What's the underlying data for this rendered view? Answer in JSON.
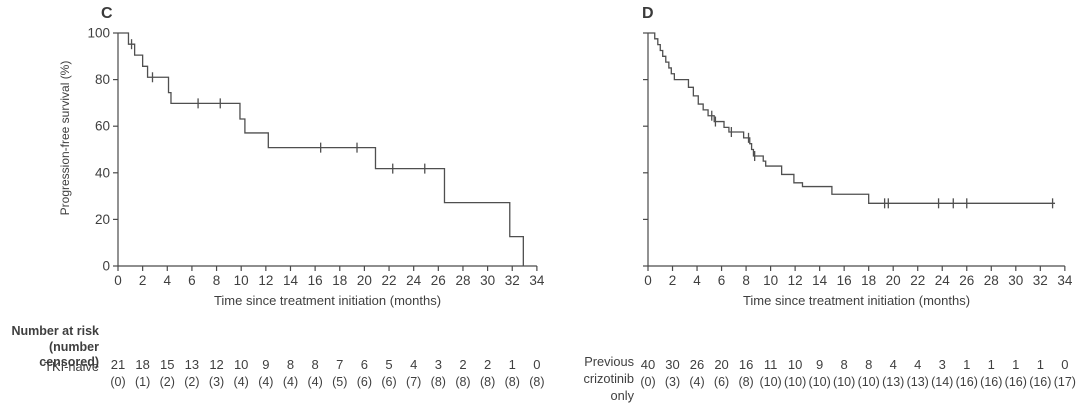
{
  "risk_header": {
    "line1": "Number at risk",
    "line2": "(number censored)"
  },
  "colors": {
    "curve": "#4f4f4f",
    "axis": "#4a4a4a",
    "text": "#3f3f3f"
  },
  "chart_data": [
    {
      "type": "line",
      "subtype": "kaplan-meier-step",
      "km_panel": "C",
      "title": "",
      "xlabel": "Time since treatment initiation (months)",
      "ylabel": "Progression-free survival (%)",
      "xlim": [
        0,
        34
      ],
      "ylim": [
        0,
        100
      ],
      "x_ticks": [
        0,
        2,
        4,
        6,
        8,
        10,
        12,
        14,
        16,
        18,
        20,
        22,
        24,
        26,
        28,
        30,
        32,
        34
      ],
      "y_ticks": [
        0,
        20,
        40,
        60,
        80,
        100
      ],
      "show_y_tick_labels": true,
      "series": [
        {
          "name": "TKI-naive",
          "steps": [
            [
              0,
              100
            ],
            [
              0.85,
              95.2
            ],
            [
              1.35,
              90.5
            ],
            [
              2.0,
              85.7
            ],
            [
              2.4,
              81
            ],
            [
              4.1,
              74.4
            ],
            [
              4.3,
              69.8
            ],
            [
              9.9,
              63.1
            ],
            [
              10.3,
              57.1
            ],
            [
              12.2,
              50.8
            ],
            [
              20.9,
              41.8
            ],
            [
              26.5,
              27.2
            ],
            [
              31.8,
              12.6
            ],
            [
              32.9,
              0
            ]
          ],
          "censors": [
            [
              1.1,
              95.2
            ],
            [
              2.8,
              81
            ],
            [
              6.5,
              69.8
            ],
            [
              8.3,
              69.8
            ],
            [
              16.45,
              50.8
            ],
            [
              19.4,
              50.8
            ],
            [
              22.3,
              41.8
            ],
            [
              24.9,
              41.8
            ]
          ],
          "end": 32.9
        }
      ],
      "risk_table": {
        "group_label": "TKI-naive",
        "group_label_lines": [
          "TKI-naive"
        ],
        "times": [
          0,
          2,
          4,
          6,
          8,
          10,
          12,
          14,
          16,
          18,
          20,
          22,
          24,
          26,
          28,
          30,
          32,
          34
        ],
        "at_risk": [
          21,
          18,
          15,
          13,
          12,
          10,
          9,
          8,
          8,
          7,
          6,
          5,
          4,
          3,
          2,
          2,
          1,
          0
        ],
        "censored": [
          0,
          1,
          2,
          2,
          3,
          4,
          4,
          4,
          4,
          5,
          6,
          6,
          7,
          8,
          8,
          8,
          8,
          8
        ]
      }
    },
    {
      "type": "line",
      "subtype": "kaplan-meier-step",
      "km_panel": "D",
      "title": "",
      "xlabel": "Time since treatment initiation (months)",
      "ylabel": "",
      "xlim": [
        0,
        34
      ],
      "ylim": [
        0,
        100
      ],
      "x_ticks": [
        0,
        2,
        4,
        6,
        8,
        10,
        12,
        14,
        16,
        18,
        20,
        22,
        24,
        26,
        28,
        30,
        32,
        34
      ],
      "y_ticks": [
        0,
        20,
        40,
        60,
        80,
        100
      ],
      "show_y_tick_labels": false,
      "series": [
        {
          "name": "Previous crizotinib only",
          "steps": [
            [
              0,
              100
            ],
            [
              0.55,
              97.5
            ],
            [
              0.8,
              95
            ],
            [
              1.0,
              92.5
            ],
            [
              1.2,
              90
            ],
            [
              1.45,
              87.5
            ],
            [
              1.7,
              85
            ],
            [
              1.9,
              82.5
            ],
            [
              2.15,
              80
            ],
            [
              3.3,
              76.7
            ],
            [
              3.7,
              73
            ],
            [
              4.1,
              69.5
            ],
            [
              4.5,
              67
            ],
            [
              4.9,
              64.5
            ],
            [
              5.4,
              62
            ],
            [
              6.2,
              59.5
            ],
            [
              6.6,
              57.5
            ],
            [
              7.8,
              55
            ],
            [
              8.3,
              52.5
            ],
            [
              8.45,
              50
            ],
            [
              8.6,
              47.2
            ],
            [
              9.4,
              45
            ],
            [
              9.6,
              42.9
            ],
            [
              10.9,
              39.3
            ],
            [
              11.9,
              35.7
            ],
            [
              12.6,
              34.1
            ],
            [
              15.0,
              30.8
            ],
            [
              18.0,
              26.9
            ]
          ],
          "censors": [
            [
              5.2,
              64.5
            ],
            [
              5.5,
              62
            ],
            [
              6.8,
              57.5
            ],
            [
              8.2,
              55
            ],
            [
              8.7,
              47.2
            ],
            [
              19.3,
              26.9
            ],
            [
              19.6,
              26.9
            ],
            [
              23.7,
              26.9
            ],
            [
              24.9,
              26.9
            ],
            [
              26.0,
              26.9
            ],
            [
              33.0,
              26.9
            ]
          ],
          "end": 33.2
        }
      ],
      "risk_table": {
        "group_label": "Previous crizotinib only",
        "group_label_lines": [
          "Previous",
          "crizotinib",
          "only"
        ],
        "times": [
          0,
          2,
          4,
          6,
          8,
          10,
          12,
          14,
          16,
          18,
          20,
          22,
          24,
          26,
          28,
          30,
          32,
          34
        ],
        "at_risk": [
          40,
          30,
          26,
          20,
          16,
          11,
          10,
          9,
          8,
          8,
          4,
          4,
          3,
          1,
          1,
          1,
          1,
          0
        ],
        "censored": [
          0,
          3,
          4,
          6,
          8,
          10,
          10,
          10,
          10,
          10,
          13,
          13,
          14,
          16,
          16,
          16,
          16,
          17
        ]
      }
    }
  ]
}
